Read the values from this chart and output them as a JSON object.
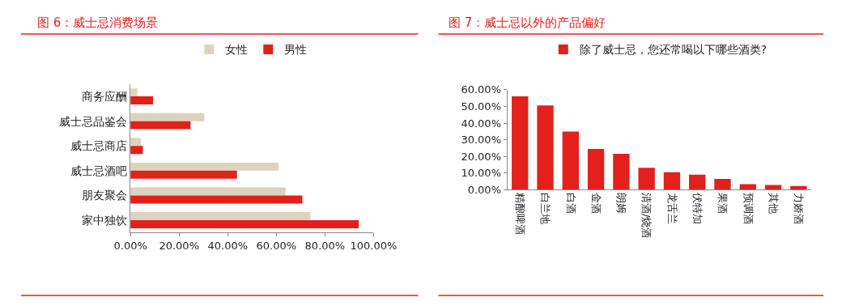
{
  "chart_data": [
    {
      "type": "bar",
      "title": "图 6：威士忌消费场景",
      "orientation": "horizontal",
      "legend": "top",
      "categories": [
        "商务应酬",
        "威士忌品鉴会",
        "威士忌商店",
        "威士忌酒吧",
        "朋友聚会",
        "家中独饮"
      ],
      "series": [
        {
          "name": "女性",
          "color": "#ddd3bd",
          "values": [
            2.8,
            30.4,
            4.3,
            60.9,
            63.8,
            74.0
          ]
        },
        {
          "name": "男性",
          "color": "#e3201b",
          "values": [
            9.3,
            24.7,
            5.1,
            43.8,
            70.7,
            93.9
          ]
        }
      ],
      "xlim": [
        0,
        100
      ],
      "xticks": [
        {
          "value": 0,
          "label": "0.00%"
        },
        {
          "value": 20,
          "label": "20.00%"
        },
        {
          "value": 40,
          "label": "40.00%"
        },
        {
          "value": 60,
          "label": "60.00%"
        },
        {
          "value": 80,
          "label": "80.00%"
        },
        {
          "value": 100,
          "label": "100.00%"
        }
      ]
    },
    {
      "type": "bar",
      "title": "图 7：威士忌以外的产品偏好",
      "legend": "top",
      "categories": [
        "精酿啤酒",
        "白兰地",
        "白酒",
        "金酒",
        "朗姆",
        "清酒/烧酒",
        "龙舌兰",
        "伏特加",
        "果酒",
        "预调酒",
        "其他",
        "力娇酒"
      ],
      "series": [
        {
          "name": "除了威士忌，您还常喝以下哪些酒类?",
          "color": "#e3201b",
          "values": [
            56.0,
            50.6,
            34.9,
            24.5,
            21.5,
            13.2,
            10.5,
            9.1,
            6.5,
            3.4,
            2.8,
            2.2
          ]
        }
      ],
      "ylim": [
        0,
        60
      ],
      "yticks": [
        {
          "value": 0,
          "label": "0.00%"
        },
        {
          "value": 10,
          "label": "10.00%"
        },
        {
          "value": 20,
          "label": "20.00%"
        },
        {
          "value": 30,
          "label": "30.00%"
        },
        {
          "value": 40,
          "label": "40.00%"
        },
        {
          "value": 50,
          "label": "50.00%"
        },
        {
          "value": 60,
          "label": "60.00%"
        }
      ]
    }
  ]
}
